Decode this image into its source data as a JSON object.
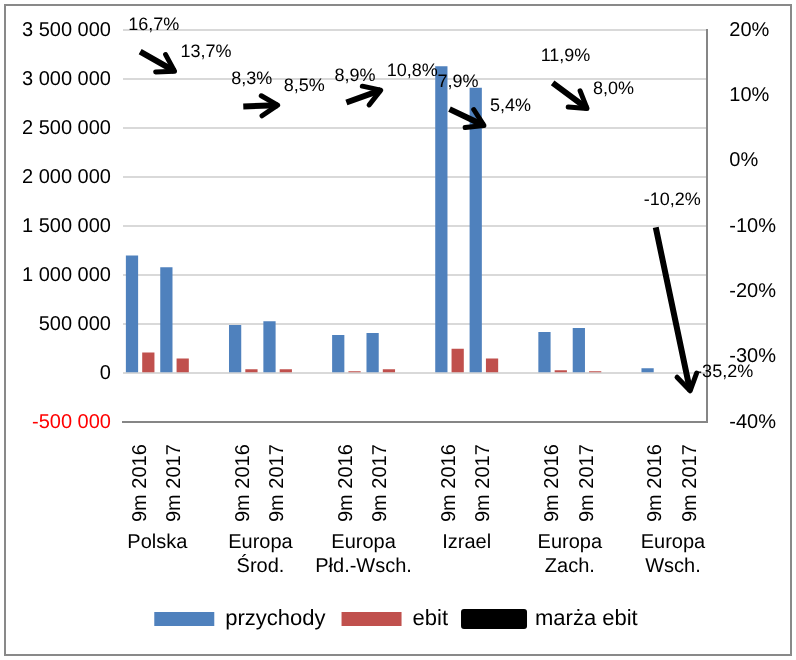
{
  "chart_data": {
    "type": "bar",
    "categories": [
      "9m 2016",
      "9m 2017",
      null,
      "9m 2016",
      "9m 2017",
      null,
      "9m 2016",
      "9m 2017",
      null,
      "9m 2016",
      "9m 2017",
      null,
      "9m 2016",
      "9m 2017",
      null,
      "9m 2016",
      "9m 2017"
    ],
    "annotations": [
      "Polska",
      "Europa Środ.",
      "Europa Płd.-Wsch.",
      "Izrael",
      "Europa Zach.",
      "Europa Wsch."
    ],
    "series": [
      {
        "name": "przychody",
        "color": "#4f81bd",
        "values": [
          1200000,
          1080000,
          null,
          490000,
          530000,
          null,
          390000,
          410000,
          null,
          3130000,
          2910000,
          null,
          420000,
          460000,
          null,
          50000,
          10000
        ]
      },
      {
        "name": "ebit",
        "color": "#c0504d",
        "values": [
          210000,
          150000,
          null,
          40000,
          40000,
          null,
          20000,
          40000,
          null,
          250000,
          150000,
          null,
          30000,
          20000,
          null,
          null,
          null
        ]
      },
      {
        "name": "marża ebit",
        "type": "line",
        "axis": "y2",
        "color": "#000000",
        "values": [
          16.7,
          13.7,
          null,
          8.3,
          8.5,
          null,
          8.9,
          10.8,
          null,
          7.9,
          5.4,
          null,
          11.9,
          8.0,
          null,
          -10.2,
          -35.2
        ],
        "value_labels": [
          "16,7%",
          "13,7%",
          null,
          "8,3%",
          "8,5%",
          null,
          "8,9%",
          "10,8%",
          null,
          "7,9%",
          "5,4%",
          null,
          "11,9%",
          "8,0%",
          null,
          "-10,2%",
          "-35,2%"
        ]
      }
    ],
    "ylim": [
      -500000,
      3500000
    ],
    "yticks": [
      {
        "value": -500000,
        "label": "-500 000"
      },
      0,
      {
        "value": 500000,
        "label": "500 000"
      },
      {
        "value": 1000000,
        "label": "1 000 000"
      },
      {
        "value": 1500000,
        "label": "1 500 000"
      },
      {
        "value": 2000000,
        "label": "2 000 000"
      },
      {
        "value": 2500000,
        "label": "2 500 000"
      },
      {
        "value": 3000000,
        "label": "3 000 000"
      },
      {
        "value": 3500000,
        "label": "3 500 000"
      }
    ],
    "y2lim": [
      -40,
      20
    ],
    "y2ticks": [
      {
        "value": -40,
        "label": "-40%"
      },
      {
        "value": -30,
        "label": "-30%"
      },
      {
        "value": -20,
        "label": "-20%"
      },
      {
        "value": -10,
        "label": "-10%"
      },
      {
        "value": 0,
        "label": "0%"
      },
      {
        "value": 10,
        "label": "10%"
      },
      {
        "value": 20,
        "label": "20%"
      }
    ],
    "grid": "y",
    "legend": "bottom"
  }
}
